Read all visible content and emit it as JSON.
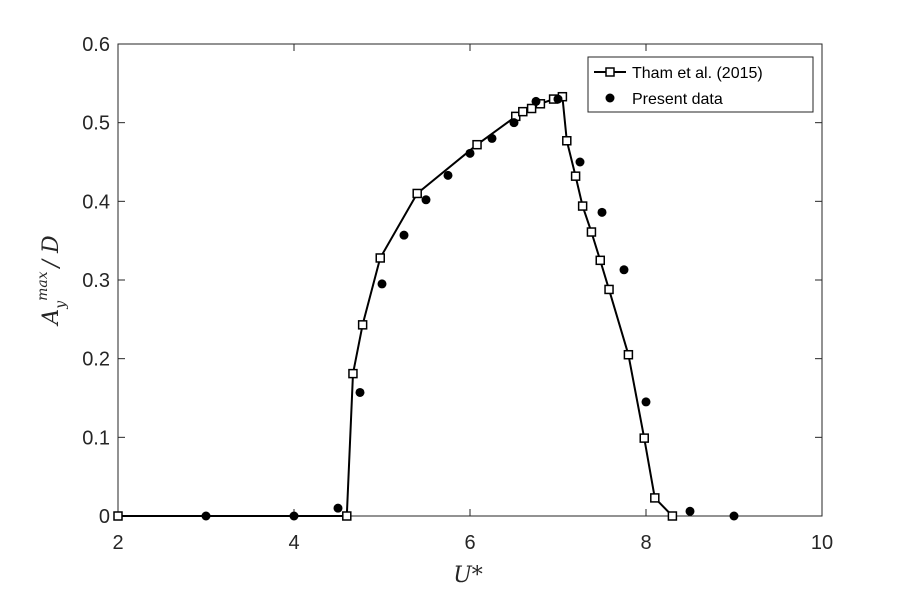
{
  "chart_data": {
    "type": "line",
    "xlabel": "U*",
    "ylabel": {
      "base": "A",
      "sub": "y",
      "sup": "max",
      "suffix": "/ D"
    },
    "xlim": [
      2,
      10
    ],
    "ylim": [
      0,
      0.6
    ],
    "xticks": [
      2,
      4,
      6,
      8,
      10
    ],
    "yticks": [
      0,
      0.1,
      0.2,
      0.3,
      0.4,
      0.5,
      0.6
    ],
    "xtick_labels": [
      "2",
      "4",
      "6",
      "8",
      "10"
    ],
    "ytick_labels": [
      "0",
      "0.1",
      "0.2",
      "0.3",
      "0.4",
      "0.5",
      "0.6"
    ],
    "grid": false,
    "box": true,
    "legend_position": "top-right",
    "series": [
      {
        "name": "Tham et al. (2015)",
        "style": "line-open-square",
        "color": "#000000",
        "x": [
          2.0,
          4.6,
          4.67,
          4.78,
          4.98,
          5.4,
          6.08,
          6.52,
          6.6,
          6.7,
          6.8,
          6.95,
          7.05,
          7.1,
          7.2,
          7.28,
          7.38,
          7.48,
          7.58,
          7.8,
          7.98,
          8.1,
          8.3
        ],
        "y": [
          0.0,
          0.0,
          0.181,
          0.243,
          0.328,
          0.41,
          0.472,
          0.508,
          0.514,
          0.518,
          0.524,
          0.53,
          0.533,
          0.477,
          0.432,
          0.394,
          0.361,
          0.325,
          0.288,
          0.205,
          0.099,
          0.023,
          0.0
        ]
      },
      {
        "name": "Present data",
        "style": "filled-circle",
        "color": "#000000",
        "x": [
          3.0,
          4.0,
          4.5,
          4.75,
          5.0,
          5.25,
          5.5,
          5.75,
          6.0,
          6.25,
          6.5,
          6.75,
          7.0,
          7.25,
          7.5,
          7.75,
          8.0,
          8.5,
          9.0
        ],
        "y": [
          0.0,
          0.0,
          0.01,
          0.157,
          0.295,
          0.357,
          0.402,
          0.433,
          0.461,
          0.48,
          0.5,
          0.527,
          0.53,
          0.45,
          0.386,
          0.313,
          0.145,
          0.006,
          0.0
        ]
      }
    ]
  }
}
